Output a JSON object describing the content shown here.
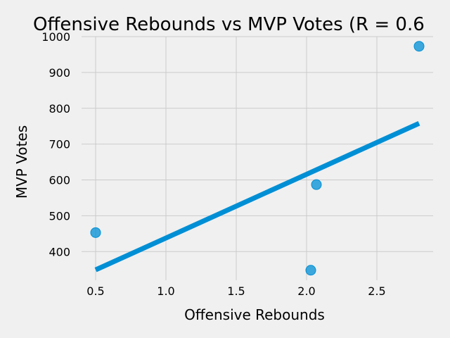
{
  "chart_data": {
    "type": "scatter",
    "title": "Offensive Rebounds vs MVP Votes (R = 0.6",
    "xlabel": "Offensive Rebounds",
    "ylabel": "MVP Votes",
    "xlim": [
      0.4,
      2.9
    ],
    "ylim": [
      320,
      1000
    ],
    "xticks": [
      0.5,
      1.0,
      1.5,
      2.0,
      2.5
    ],
    "xtick_labels": [
      "0.5",
      "1.0",
      "1.5",
      "2.0",
      "2.5"
    ],
    "yticks": [
      400,
      500,
      600,
      700,
      800,
      900,
      1000
    ],
    "ytick_labels": [
      "400",
      "500",
      "600",
      "700",
      "800",
      "900",
      "1000"
    ],
    "grid": true,
    "series": [
      {
        "kind": "scatter",
        "color": "#008fd5",
        "points": [
          {
            "x": 0.5,
            "y": 453
          },
          {
            "x": 2.03,
            "y": 348
          },
          {
            "x": 2.07,
            "y": 587
          },
          {
            "x": 2.8,
            "y": 973
          }
        ]
      },
      {
        "kind": "line",
        "color": "#008fd5",
        "points": [
          {
            "x": 0.5,
            "y": 349
          },
          {
            "x": 2.8,
            "y": 758
          }
        ]
      }
    ]
  }
}
